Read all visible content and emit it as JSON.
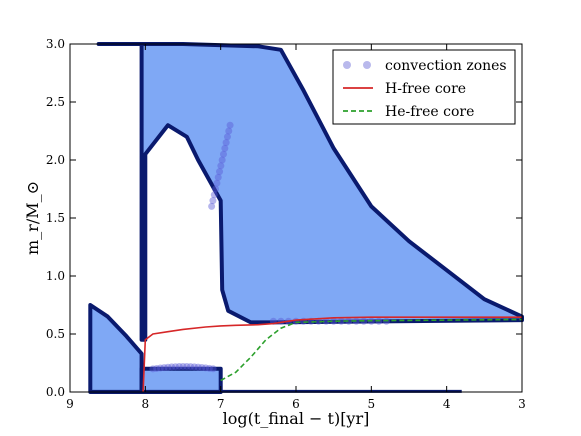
{
  "chart_data": {
    "type": "area",
    "xlabel": "log(t_final − t)[yr]",
    "ylabel": "m_r/M_⊙",
    "xlim": [
      9,
      3
    ],
    "ylim": [
      0.0,
      3.0
    ],
    "x_ticks": [
      "9",
      "8",
      "7",
      "6",
      "5",
      "4",
      "3"
    ],
    "y_ticks": [
      "0.0",
      "0.5",
      "1.0",
      "1.5",
      "2.0",
      "2.5",
      "3.0"
    ],
    "grid": false,
    "legend_position": "top-right",
    "legend": [
      {
        "label": "convection zones",
        "style": "dots",
        "color": "#8a8ae0"
      },
      {
        "label": "H-free core",
        "style": "solid",
        "color": "#d62728"
      },
      {
        "label": "He-free core",
        "style": "dashed",
        "color": "#2ca02c"
      }
    ],
    "colors": {
      "fill": "#7fa8f5",
      "edge": "#0a1a6e",
      "dots": "#5a5ad8"
    },
    "series": [
      {
        "name": "convection zones",
        "regions": [
          {
            "points": [
              [
                8.62,
                3.0
              ],
              [
                7.5,
                3.0
              ],
              [
                6.5,
                2.98
              ],
              [
                6.2,
                2.95
              ],
              [
                5.9,
                2.6
              ],
              [
                5.5,
                2.1
              ],
              [
                5.0,
                1.6
              ],
              [
                4.5,
                1.3
              ],
              [
                4.0,
                1.05
              ],
              [
                3.5,
                0.8
              ],
              [
                3.0,
                0.65
              ],
              [
                3.0,
                0.62
              ],
              [
                6.3,
                0.6
              ],
              [
                6.6,
                0.6
              ],
              [
                6.9,
                0.7
              ],
              [
                6.98,
                0.88
              ],
              [
                7.0,
                1.65
              ],
              [
                7.3,
                2.0
              ],
              [
                7.45,
                2.2
              ],
              [
                7.7,
                2.3
              ],
              [
                8.0,
                2.05
              ],
              [
                8.0,
                0.45
              ],
              [
                8.05,
                0.45
              ],
              [
                8.05,
                3.0
              ]
            ]
          },
          {
            "points": [
              [
                8.73,
                0.75
              ],
              [
                8.5,
                0.65
              ],
              [
                8.25,
                0.48
              ],
              [
                8.05,
                0.33
              ],
              [
                8.05,
                0.0
              ],
              [
                8.73,
                0.0
              ]
            ]
          },
          {
            "points": [
              [
                8.05,
                0.2
              ],
              [
                7.6,
                0.2
              ],
              [
                7.0,
                0.2
              ],
              [
                7.0,
                0.0
              ],
              [
                8.05,
                0.0
              ]
            ]
          }
        ]
      },
      {
        "name": "H-free core",
        "x": [
          8.03,
          8.0,
          7.9,
          7.7,
          7.5,
          7.2,
          7.0,
          6.8,
          6.5,
          6.3,
          6.0,
          5.5,
          5.0,
          4.0,
          3.0
        ],
        "y": [
          0.0,
          0.45,
          0.5,
          0.52,
          0.54,
          0.56,
          0.57,
          0.575,
          0.58,
          0.59,
          0.62,
          0.64,
          0.645,
          0.645,
          0.645
        ]
      },
      {
        "name": "He-free core",
        "x": [
          7.0,
          6.8,
          6.6,
          6.4,
          6.2,
          6.0,
          5.5,
          5.0,
          4.0,
          3.0
        ],
        "y": [
          0.1,
          0.17,
          0.3,
          0.45,
          0.55,
          0.6,
          0.61,
          0.615,
          0.62,
          0.625
        ]
      }
    ]
  }
}
